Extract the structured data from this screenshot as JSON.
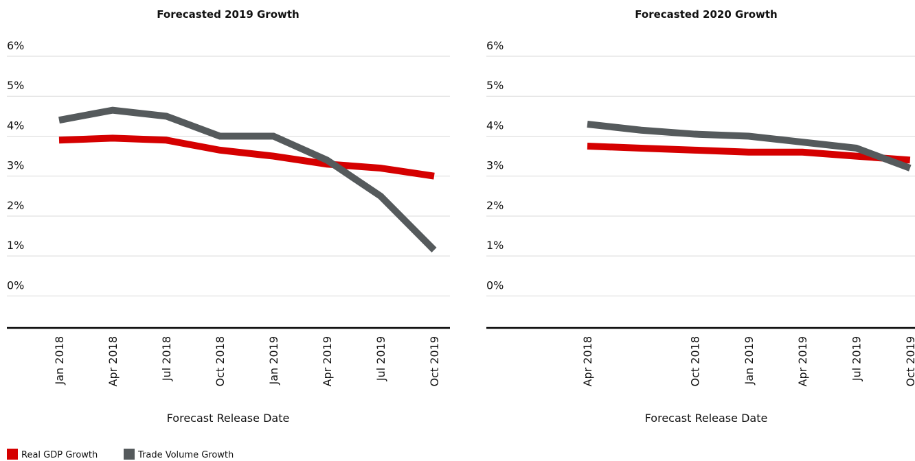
{
  "chart_data": [
    {
      "type": "line",
      "title": "Forecasted 2019 Growth",
      "x_label": "Forecast Release Date",
      "categories": [
        "Jan 2018",
        "Apr 2018",
        "Jul 2018",
        "Oct 2018",
        "Jan 2019",
        "Apr 2019",
        "Jul 2019",
        "Oct 2019"
      ],
      "series": [
        {
          "name": "Real GDP Growth",
          "color": "#d50000",
          "values": [
            3.9,
            3.95,
            3.9,
            3.65,
            3.5,
            3.3,
            3.2,
            3.0
          ]
        },
        {
          "name": "Trade Volume Growth",
          "color": "#555a5c",
          "values": [
            4.4,
            4.65,
            4.5,
            4.0,
            4.0,
            3.4,
            2.5,
            1.15
          ]
        }
      ],
      "ylim": [
        -0.8,
        6
      ],
      "yticks": [
        {
          "value": 0,
          "label": "0%"
        },
        {
          "value": 1,
          "label": "1%"
        },
        {
          "value": 2,
          "label": "2%"
        },
        {
          "value": 3,
          "label": "3%"
        },
        {
          "value": 4,
          "label": "4%"
        },
        {
          "value": 5,
          "label": "5%"
        },
        {
          "value": 6,
          "label": "6%"
        }
      ],
      "grid": true
    },
    {
      "type": "line",
      "title": "Forecasted 2020 Growth",
      "x_label": "Forecast Release Date",
      "categories": [
        "Apr 2018",
        null,
        "Oct 2018",
        "Jan 2019",
        "Apr 2019",
        "Jul 2019",
        "Oct 2019"
      ],
      "series": [
        {
          "name": "Real GDP Growth",
          "color": "#d50000",
          "values": [
            3.75,
            3.7,
            3.65,
            3.6,
            3.6,
            3.5,
            3.4
          ]
        },
        {
          "name": "Trade Volume Growth",
          "color": "#555a5c",
          "values": [
            4.3,
            4.15,
            4.05,
            4.0,
            3.85,
            3.7,
            3.2
          ]
        }
      ],
      "ylim": [
        -0.8,
        6
      ],
      "yticks": [
        {
          "value": 0,
          "label": "0%"
        },
        {
          "value": 1,
          "label": "1%"
        },
        {
          "value": 2,
          "label": "2%"
        },
        {
          "value": 3,
          "label": "3%"
        },
        {
          "value": 4,
          "label": "4%"
        },
        {
          "value": 5,
          "label": "5%"
        },
        {
          "value": 6,
          "label": "6%"
        }
      ],
      "grid": true
    }
  ]
}
